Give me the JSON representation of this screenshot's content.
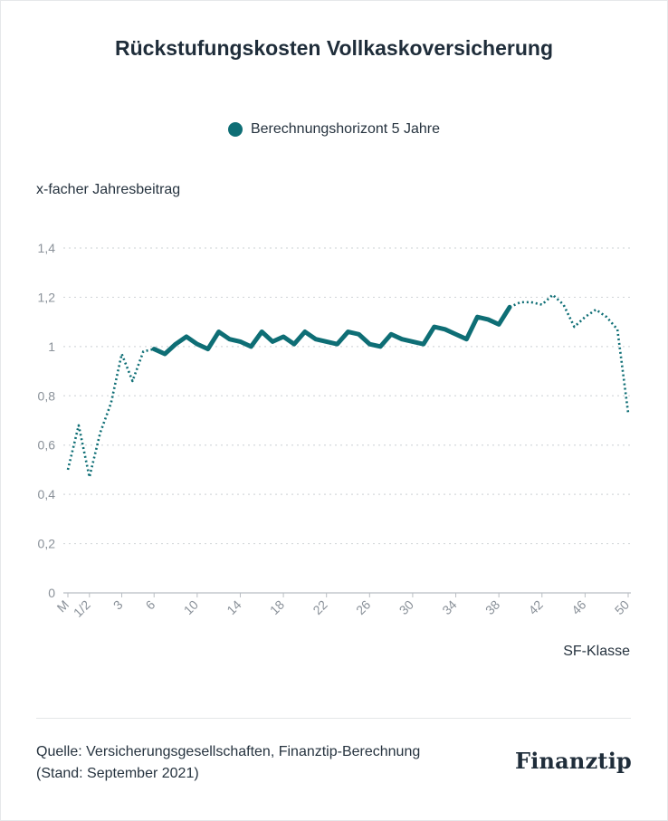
{
  "chart_data": {
    "type": "line",
    "title": "Rückstufungskosten Vollkaskoversicherung",
    "ylabel": "x-facher Jahresbeitrag",
    "xlabel": "SF-Klasse",
    "ylim": [
      0,
      1.4
    ],
    "yticks": [
      "0",
      "0,2",
      "0,4",
      "0,6",
      "0,8",
      "1",
      "1,2",
      "1,4"
    ],
    "xtick_labels": [
      "M",
      "1/2",
      "3",
      "6",
      "10",
      "14",
      "18",
      "22",
      "26",
      "30",
      "34",
      "38",
      "42",
      "46",
      "50"
    ],
    "x": [
      "M",
      "0",
      "1/2",
      "1",
      "2",
      "3",
      "4",
      "5",
      "6",
      "7",
      "8",
      "9",
      "10",
      "11",
      "12",
      "13",
      "14",
      "15",
      "16",
      "17",
      "18",
      "19",
      "20",
      "21",
      "22",
      "23",
      "24",
      "25",
      "26",
      "27",
      "28",
      "29",
      "30",
      "31",
      "32",
      "33",
      "34",
      "35",
      "36",
      "37",
      "38",
      "39",
      "40",
      "41",
      "42",
      "43",
      "44",
      "45",
      "46",
      "47",
      "48",
      "49",
      "50"
    ],
    "series": [
      {
        "name": "Berechnungshorizont 5 Jahre",
        "color": "#0e6e75",
        "values": [
          0.5,
          0.68,
          0.47,
          0.65,
          0.77,
          0.97,
          0.86,
          0.98,
          0.99,
          0.97,
          1.01,
          1.04,
          1.01,
          0.99,
          1.06,
          1.03,
          1.02,
          1.0,
          1.06,
          1.02,
          1.04,
          1.01,
          1.06,
          1.03,
          1.02,
          1.01,
          1.06,
          1.05,
          1.01,
          1.0,
          1.05,
          1.03,
          1.02,
          1.01,
          1.08,
          1.07,
          1.05,
          1.03,
          1.12,
          1.11,
          1.09,
          1.16,
          1.18,
          1.18,
          1.17,
          1.21,
          1.17,
          1.08,
          1.12,
          1.15,
          1.12,
          1.07,
          0.73
        ],
        "solid_range_x": [
          "6",
          "39"
        ],
        "dotted_outside": true
      }
    ],
    "grid": true,
    "legend_position": "top-center"
  },
  "source": {
    "line1": "Quelle: Versicherungsgesellschaften, Finanztip-Berechnung",
    "line2": "(Stand: September 2021)"
  },
  "logo_text": "Finanztip"
}
